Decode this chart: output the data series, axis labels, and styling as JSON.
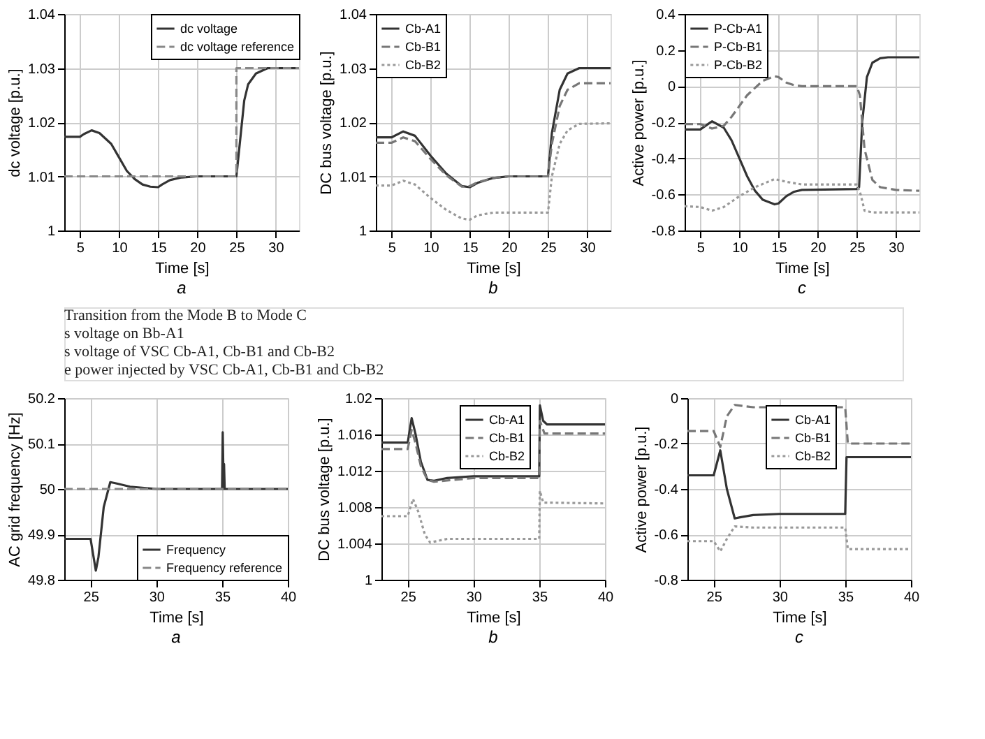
{
  "chart_data": [
    {
      "type": "line",
      "xlabel": "Time [s]",
      "ylabel": "dc voltage [p.u.]",
      "annotations": [
        "a"
      ],
      "xlim": [
        3,
        33
      ],
      "xticks": [
        5,
        10,
        15,
        20,
        25,
        30
      ],
      "ylim": [
        1,
        1.04
      ],
      "yticks": [
        1,
        1.01,
        1.02,
        1.03,
        1.04
      ],
      "grid": true,
      "legend": "top right",
      "series": [
        {
          "name": "dc voltage",
          "color": "#333333",
          "line_style": "solid",
          "x": [
            3,
            5,
            5.5,
            6.5,
            7.5,
            9,
            10,
            11,
            12,
            13,
            14,
            15,
            15.5,
            16.5,
            18,
            20,
            25,
            25.5,
            26,
            26.5,
            27.5,
            29,
            33
          ],
          "values": [
            1.0173,
            1.0173,
            1.0178,
            1.0185,
            1.018,
            1.016,
            1.0135,
            1.011,
            1.0095,
            1.0085,
            1.0081,
            1.008,
            1.0085,
            1.0093,
            1.0098,
            1.01,
            1.01,
            1.017,
            1.024,
            1.027,
            1.029,
            1.03,
            1.03
          ]
        },
        {
          "name": "dc voltage reference",
          "color": "#888888",
          "line_style": "dashed",
          "x": [
            3,
            25,
            25,
            33
          ],
          "values": [
            1.01,
            1.01,
            1.03,
            1.03
          ]
        }
      ]
    },
    {
      "type": "line",
      "xlabel": "Time [s]",
      "ylabel": "DC bus voltage [p.u.]",
      "annotations": [
        "b"
      ],
      "xlim": [
        3,
        33
      ],
      "xticks": [
        5,
        10,
        15,
        20,
        25,
        30
      ],
      "ylim": [
        1,
        1.04
      ],
      "yticks": [
        1,
        1.01,
        1.02,
        1.03,
        1.04
      ],
      "grid": true,
      "legend": "top left",
      "series": [
        {
          "name": "Cb-A1",
          "color": "#333333",
          "line_style": "solid",
          "x": [
            3,
            5,
            6.5,
            8,
            10,
            12,
            14,
            15,
            16,
            18,
            20,
            25,
            25.5,
            26.5,
            27.5,
            29,
            33
          ],
          "values": [
            1.0172,
            1.0172,
            1.0183,
            1.0175,
            1.0138,
            1.0105,
            1.0082,
            1.008,
            1.0088,
            1.0097,
            1.01,
            1.01,
            1.018,
            1.026,
            1.029,
            1.03,
            1.03
          ]
        },
        {
          "name": "Cb-B1",
          "color": "#777777",
          "line_style": "dashed",
          "x": [
            3,
            5,
            6.5,
            8,
            10,
            12,
            14,
            15,
            16,
            18,
            20,
            25,
            25.5,
            26.5,
            27.5,
            29,
            33
          ],
          "values": [
            1.0162,
            1.0162,
            1.0172,
            1.0165,
            1.0132,
            1.0102,
            1.0081,
            1.0082,
            1.0089,
            1.0097,
            1.01,
            1.01,
            1.016,
            1.023,
            1.026,
            1.0272,
            1.0272
          ]
        },
        {
          "name": "Cb-B2",
          "color": "#999999",
          "line_style": "dotted",
          "x": [
            3,
            5,
            6.5,
            8,
            10,
            12,
            14,
            15,
            16,
            18,
            25,
            25.5,
            26.5,
            27.5,
            29,
            33
          ],
          "values": [
            1.0083,
            1.0083,
            1.0092,
            1.0085,
            1.006,
            1.0038,
            1.0022,
            1.002,
            1.0028,
            1.0033,
            1.0033,
            1.01,
            1.016,
            1.0185,
            1.0197,
            1.0198
          ]
        }
      ]
    },
    {
      "type": "line",
      "xlabel": "Time [s]",
      "ylabel": "Active power [p.u.]",
      "annotations": [
        "c"
      ],
      "xlim": [
        3,
        33
      ],
      "xticks": [
        5,
        10,
        15,
        20,
        25,
        30
      ],
      "ylim": [
        -0.8,
        0.4
      ],
      "yticks": [
        -0.8,
        -0.6,
        -0.4,
        -0.2,
        0,
        0.2,
        0.4
      ],
      "grid": true,
      "legend": "top left",
      "series": [
        {
          "name": "P-Cb-A1",
          "color": "#333333",
          "line_style": "solid",
          "x": [
            3,
            5,
            6.5,
            8,
            9,
            10,
            11,
            12,
            13,
            14.5,
            15,
            16,
            17,
            18,
            25,
            25.3,
            25.7,
            26.3,
            27,
            28,
            29,
            33
          ],
          "values": [
            -0.24,
            -0.24,
            -0.195,
            -0.23,
            -0.3,
            -0.4,
            -0.5,
            -0.58,
            -0.63,
            -0.655,
            -0.65,
            -0.61,
            -0.585,
            -0.575,
            -0.57,
            -0.56,
            -0.2,
            0.05,
            0.13,
            0.155,
            0.16,
            0.16
          ]
        },
        {
          "name": "P-Cb-B1",
          "color": "#777777",
          "line_style": "dashed",
          "x": [
            3,
            5,
            6.5,
            8,
            9,
            10,
            11,
            12,
            13,
            14.5,
            15,
            16,
            17,
            18,
            25,
            25.4,
            26,
            27,
            28,
            30,
            33
          ],
          "values": [
            -0.21,
            -0.21,
            -0.235,
            -0.22,
            -0.17,
            -0.11,
            -0.05,
            -0.01,
            0.03,
            0.055,
            0.05,
            0.02,
            0.005,
            0,
            0,
            -0.05,
            -0.35,
            -0.52,
            -0.56,
            -0.575,
            -0.58
          ]
        },
        {
          "name": "P-Cb-B2",
          "color": "#999999",
          "line_style": "dotted",
          "x": [
            3,
            5,
            6.5,
            8,
            10,
            12,
            14.5,
            16,
            18,
            25,
            25.5,
            26,
            27,
            33
          ],
          "values": [
            -0.665,
            -0.67,
            -0.69,
            -0.67,
            -0.61,
            -0.56,
            -0.515,
            -0.53,
            -0.545,
            -0.545,
            -0.6,
            -0.69,
            -0.7,
            -0.7
          ]
        }
      ]
    },
    {
      "type": "other",
      "annotations": [
        "Transition from the Mode B to Mode C",
        "s voltage on Bb-A1",
        "s voltage of VSC Cb-A1, Cb-B1 and Cb-B2",
        "e power injected by VSC Cb-A1, Cb-B1 and Cb-B2"
      ]
    },
    {
      "type": "line",
      "xlabel": "Time [s]",
      "ylabel": "AC grid frequency [Hz]",
      "annotations": [
        "a"
      ],
      "xlim": [
        23,
        40
      ],
      "xticks": [
        25,
        30,
        35,
        40
      ],
      "ylim": [
        49.8,
        50.2
      ],
      "yticks": [
        49.8,
        49.9,
        50,
        50.1,
        50.2
      ],
      "grid": true,
      "legend": "bottom right",
      "series": [
        {
          "name": "Frequency",
          "color": "#333333",
          "line_style": "solid",
          "x": [
            23,
            25,
            25.4,
            25.6,
            26,
            26.5,
            27,
            28,
            30,
            35,
            35.05,
            35.12,
            35.15,
            35.2,
            40
          ],
          "values": [
            49.89,
            49.89,
            49.82,
            49.85,
            49.96,
            50.015,
            50.012,
            50.005,
            50,
            50,
            50.125,
            50,
            50.055,
            50,
            50
          ]
        },
        {
          "name": "Frequency reference",
          "color": "#888888",
          "line_style": "dashed",
          "x": [
            23,
            40
          ],
          "values": [
            50,
            50
          ]
        }
      ]
    },
    {
      "type": "line",
      "xlabel": "Time [s]",
      "ylabel": "DC bus voltage [p.u.]",
      "annotations": [
        "b"
      ],
      "xlim": [
        23,
        40
      ],
      "xticks": [
        25,
        30,
        35,
        40
      ],
      "ylim": [
        1,
        1.02
      ],
      "yticks": [
        1,
        1.004,
        1.008,
        1.012,
        1.016,
        1.02
      ],
      "grid": true,
      "legend": "top",
      "series": [
        {
          "name": "Cb-A1",
          "color": "#333333",
          "line_style": "solid",
          "x": [
            23,
            25,
            25.3,
            25.6,
            26,
            26.5,
            27,
            28,
            30,
            35,
            35.05,
            35.3,
            35.6,
            40
          ],
          "values": [
            1.0151,
            1.0151,
            1.0178,
            1.016,
            1.013,
            1.011,
            1.0109,
            1.0112,
            1.0114,
            1.0114,
            1.0192,
            1.0175,
            1.0171,
            1.0171
          ]
        },
        {
          "name": "Cb-B1",
          "color": "#777777",
          "line_style": "dashed",
          "x": [
            23,
            25,
            25.3,
            25.6,
            26,
            26.5,
            27,
            30,
            35,
            35.05,
            35.4,
            40
          ],
          "values": [
            1.0144,
            1.0144,
            1.0165,
            1.015,
            1.0125,
            1.011,
            1.0108,
            1.0112,
            1.0112,
            1.0175,
            1.0161,
            1.0161
          ]
        },
        {
          "name": "Cb-B2",
          "color": "#999999",
          "line_style": "dotted",
          "x": [
            23,
            25,
            25.4,
            25.8,
            26.3,
            26.7,
            28,
            35,
            35.05,
            35.3,
            40
          ],
          "values": [
            1.007,
            1.007,
            1.0089,
            1.0075,
            1.005,
            1.0041,
            1.0045,
            1.0045,
            1.0098,
            1.0085,
            1.0084
          ]
        }
      ]
    },
    {
      "type": "line",
      "xlabel": "Time [s]",
      "ylabel": "Active power [p.u.]",
      "annotations": [
        "c"
      ],
      "xlim": [
        23,
        40
      ],
      "xticks": [
        25,
        30,
        35,
        40
      ],
      "ylim": [
        -0.8,
        0
      ],
      "yticks": [
        -0.8,
        -0.6,
        -0.4,
        -0.2,
        0
      ],
      "grid": true,
      "legend": "top",
      "series": [
        {
          "name": "Cb-A1",
          "color": "#333333",
          "line_style": "solid",
          "x": [
            23,
            25,
            25.5,
            26,
            26.6,
            27,
            28,
            30,
            35,
            35.1,
            40
          ],
          "values": [
            -0.34,
            -0.34,
            -0.23,
            -0.4,
            -0.53,
            -0.525,
            -0.515,
            -0.51,
            -0.51,
            -0.26,
            -0.26
          ]
        },
        {
          "name": "Cb-B1",
          "color": "#777777",
          "line_style": "dashed",
          "x": [
            23,
            25,
            25.5,
            26,
            26.6,
            28,
            35,
            35.2,
            40
          ],
          "values": [
            -0.145,
            -0.145,
            -0.215,
            -0.08,
            -0.03,
            -0.04,
            -0.04,
            -0.2,
            -0.2
          ]
        },
        {
          "name": "Cb-B2",
          "color": "#999999",
          "line_style": "dotted",
          "x": [
            23,
            25,
            25.5,
            26,
            26.6,
            28,
            35,
            35.2,
            40
          ],
          "values": [
            -0.63,
            -0.63,
            -0.675,
            -0.62,
            -0.565,
            -0.57,
            -0.57,
            -0.665,
            -0.665
          ]
        }
      ]
    }
  ]
}
